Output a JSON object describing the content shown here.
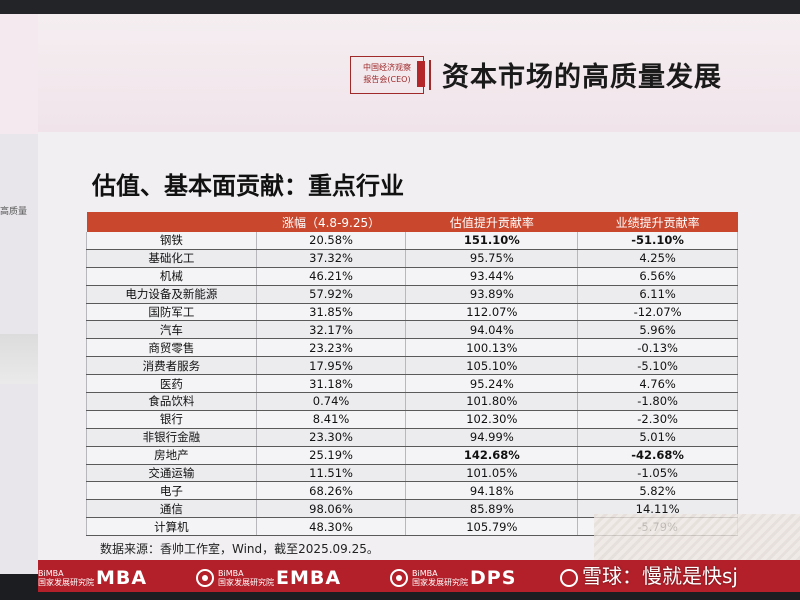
{
  "header": {
    "logo_line1": "中国经济观察",
    "logo_line2": "报告会(CEO)",
    "title": "资本市场的高质量发展"
  },
  "left_fragment": "高质量",
  "slide_title": "估值、基本面贡献：重点行业",
  "table": {
    "headers": [
      "",
      "涨幅（4.8-9.25）",
      "估值提升贡献率",
      "业绩提升贡献率"
    ],
    "rows": [
      [
        "钢铁",
        "20.58%",
        "151.10%",
        "-51.10%"
      ],
      [
        "基础化工",
        "37.32%",
        "95.75%",
        "4.25%"
      ],
      [
        "机械",
        "46.21%",
        "93.44%",
        "6.56%"
      ],
      [
        "电力设备及新能源",
        "57.92%",
        "93.89%",
        "6.11%"
      ],
      [
        "国防军工",
        "31.85%",
        "112.07%",
        "-12.07%"
      ],
      [
        "汽车",
        "32.17%",
        "94.04%",
        "5.96%"
      ],
      [
        "商贸零售",
        "23.23%",
        "100.13%",
        "-0.13%"
      ],
      [
        "消费者服务",
        "17.95%",
        "105.10%",
        "-5.10%"
      ],
      [
        "医药",
        "31.18%",
        "95.24%",
        "4.76%"
      ],
      [
        "食品饮料",
        "0.74%",
        "101.80%",
        "-1.80%"
      ],
      [
        "银行",
        "8.41%",
        "102.30%",
        "-2.30%"
      ],
      [
        "非银行金融",
        "23.30%",
        "94.99%",
        "5.01%"
      ],
      [
        "房地产",
        "25.19%",
        "142.68%",
        "-42.68%"
      ],
      [
        "交通运输",
        "11.51%",
        "101.05%",
        "-1.05%"
      ],
      [
        "电子",
        "68.26%",
        "94.18%",
        "5.82%"
      ],
      [
        "通信",
        "98.06%",
        "85.89%",
        "14.11%"
      ],
      [
        "计算机",
        "48.30%",
        "105.79%",
        "-5.79%"
      ]
    ],
    "bold_rows": [
      "钢铁",
      "房地产"
    ]
  },
  "source": "数据来源：香帅工作室，Wind，截至2025.09.25。",
  "footer": {
    "brands": [
      {
        "small1": "BiMBA",
        "small2": "国家发展研究院",
        "big": "MBA"
      },
      {
        "small1": "BiMBA",
        "small2": "国家发展研究院",
        "big": "EMBA"
      },
      {
        "small1": "BiMBA",
        "small2": "国家发展研究院",
        "big": "DPS"
      }
    ]
  },
  "watermark": "雪球：慢就是快sj",
  "colors": {
    "header_red": "#c9472d",
    "footer_red": "#b4202a",
    "logo_red": "#a02a2a"
  }
}
